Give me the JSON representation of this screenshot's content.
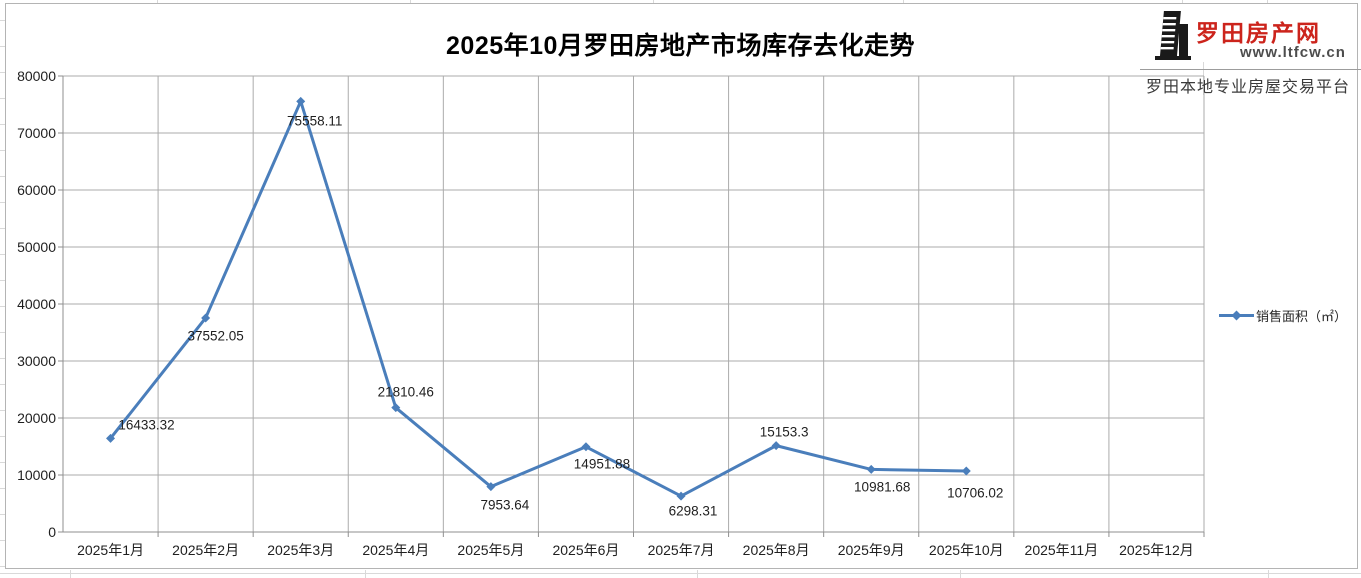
{
  "page": {
    "background": "#ffffff"
  },
  "logo": {
    "site_name": "罗田房产网",
    "site_url": "www.ltfcw.cn",
    "tagline": "罗田本地专业房屋交易平台",
    "brand_red": "#cc241c",
    "icon": "buildings-icon"
  },
  "chart_data": {
    "type": "line",
    "title": "2025年10月罗田房地产市场库存去化走势",
    "categories": [
      "2025年1月",
      "2025年2月",
      "2025年3月",
      "2025年4月",
      "2025年5月",
      "2025年6月",
      "2025年7月",
      "2025年8月",
      "2025年9月",
      "2025年10月",
      "2025年11月",
      "2025年12月"
    ],
    "series": [
      {
        "name": "销售面积（㎡）",
        "values": [
          16433.32,
          37552.05,
          75558.11,
          21810.46,
          7953.64,
          14951.88,
          6298.31,
          15153.3,
          10981.68,
          10706.02,
          null,
          null
        ]
      }
    ],
    "data_labels": [
      "16433.32",
      "37552.05",
      "75558.11",
      "21810.46",
      "7953.64",
      "14951.88",
      "6298.31",
      "15153.3",
      "10981.68",
      "10706.02"
    ],
    "ylim": [
      0,
      80000
    ],
    "ytick_step": 10000,
    "ytick_labels": [
      "0",
      "10000",
      "20000",
      "30000",
      "40000",
      "50000",
      "60000",
      "70000",
      "80000"
    ],
    "grid": "major-horizontal-and-vertical",
    "legend_position": "right",
    "line_color": "#4a7ebb",
    "marker": "diamond"
  }
}
